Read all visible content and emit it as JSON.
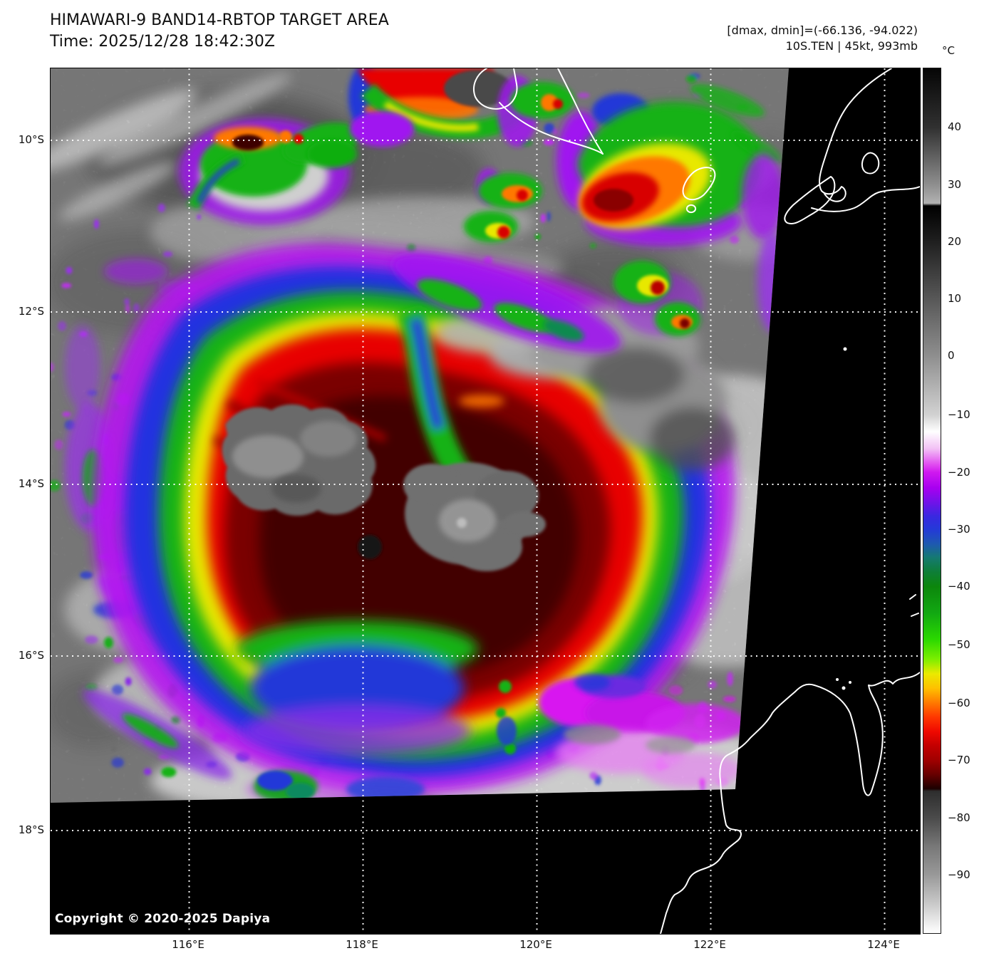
{
  "header": {
    "title": "HIMAWARI-9 BAND14-RBTOP TARGET AREA",
    "time": "Time: 2025/12/28 18:42:30Z"
  },
  "annotations": {
    "dmax_dmin": "[dmax, dmin]=(-66.136, -94.022)",
    "storm": "10S.TEN | 45kt, 993mb",
    "dmax": -66.136,
    "dmin": -94.022,
    "storm_id": "10S.TEN",
    "intensity": "45kt",
    "pressure": "993mb"
  },
  "colorbar": {
    "unit": "°C",
    "ticks": [
      "40",
      "30",
      "20",
      "10",
      "0",
      "−10",
      "−20",
      "−30",
      "−40",
      "−50",
      "−60",
      "−70",
      "−80",
      "−90"
    ],
    "tick_values": [
      40,
      30,
      20,
      10,
      0,
      -10,
      -20,
      -30,
      -40,
      -50,
      -60,
      -70,
      -80,
      -90
    ],
    "palette_stops": [
      {
        "temp_c": 50,
        "color": "#060606"
      },
      {
        "temp_c": 30,
        "color": "#8f8f8f"
      },
      {
        "temp_c": 25,
        "color": "#000000"
      },
      {
        "temp_c": 0,
        "color": "#8d8d8d"
      },
      {
        "temp_c": -13,
        "color": "#ffffff"
      },
      {
        "temp_c": -20,
        "color": "#d019ef"
      },
      {
        "temp_c": -30,
        "color": "#2439d8"
      },
      {
        "temp_c": -40,
        "color": "#0c860c"
      },
      {
        "temp_c": -50,
        "color": "#2ad800"
      },
      {
        "temp_c": -55,
        "color": "#eaea00"
      },
      {
        "temp_c": -60,
        "color": "#ff7800"
      },
      {
        "temp_c": -70,
        "color": "#a00000"
      },
      {
        "temp_c": -75,
        "color": "#1c0000"
      },
      {
        "temp_c": -80,
        "color": "#4b4b4b"
      },
      {
        "temp_c": -90,
        "color": "#989898"
      },
      {
        "temp_c": -100,
        "color": "#ffffff"
      }
    ]
  },
  "axes": {
    "lat": [
      "10°S",
      "12°S",
      "14°S",
      "16°S",
      "18°S"
    ],
    "lon": [
      "116°E",
      "118°E",
      "120°E",
      "122°E",
      "124°E"
    ]
  },
  "map": {
    "copyright": "Copyright © 2020-2025 Dapiya"
  }
}
